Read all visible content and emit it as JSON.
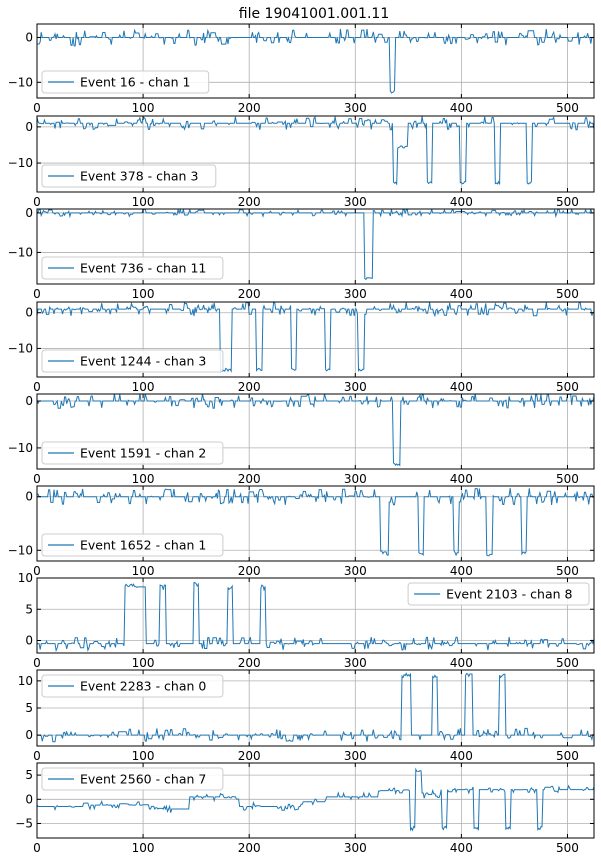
{
  "title": "file  19041001.001.11",
  "colors": {
    "line": "#1f77b4",
    "grid": "#b0b0b0",
    "axis": "#000000",
    "legend_border": "#cccccc"
  },
  "chart_data": [
    {
      "type": "line",
      "legend": "Event 16 - chan 1",
      "legend_loc": "lower-left",
      "xlim": [
        0,
        525
      ],
      "ylim": [
        -13.5,
        3
      ],
      "xticks": [
        0,
        100,
        200,
        300,
        400,
        500
      ],
      "yticks": [
        -10,
        0
      ],
      "grid": true,
      "baseline": 0,
      "noise": 1.2,
      "seed": 11,
      "pulses": [
        {
          "start": 333,
          "end": 337,
          "level": -12
        }
      ]
    },
    {
      "type": "line",
      "legend": "Event 378 - chan 3",
      "legend_loc": "lower-left",
      "xlim": [
        0,
        525
      ],
      "ylim": [
        -18,
        3
      ],
      "xticks": [
        0,
        100,
        200,
        300,
        400,
        500
      ],
      "yticks": [
        -10,
        0
      ],
      "grid": true,
      "baseline": 1,
      "noise": 1.2,
      "seed": 23,
      "pulses": [
        {
          "start": 336,
          "end": 339,
          "level": -15.5
        },
        {
          "start": 340,
          "end": 348,
          "level": -5.5
        },
        {
          "start": 368,
          "end": 372,
          "level": -15.5
        },
        {
          "start": 399,
          "end": 403,
          "level": -15.5
        },
        {
          "start": 432,
          "end": 436,
          "level": -15.5
        },
        {
          "start": 462,
          "end": 466,
          "level": -15.5
        }
      ]
    },
    {
      "type": "line",
      "legend": "Event 736 - chan 11",
      "legend_loc": "lower-left",
      "xlim": [
        0,
        525
      ],
      "ylim": [
        -18,
        1
      ],
      "xticks": [
        0,
        100,
        200,
        300,
        400,
        500
      ],
      "yticks": [
        -10,
        0
      ],
      "grid": true,
      "baseline": 0,
      "noise": 0.6,
      "seed": 37,
      "pulses": [
        {
          "start": 309,
          "end": 316,
          "level": -16.5
        }
      ]
    },
    {
      "type": "line",
      "legend": "Event 1244 - chan 3",
      "legend_loc": "lower-left",
      "xlim": [
        0,
        525
      ],
      "ylim": [
        -18,
        3
      ],
      "xticks": [
        0,
        100,
        200,
        300,
        400,
        500
      ],
      "yticks": [
        -10,
        0
      ],
      "grid": true,
      "baseline": 1,
      "noise": 1.2,
      "seed": 41,
      "pulses": [
        {
          "start": 173,
          "end": 183,
          "level": -16
        },
        {
          "start": 207,
          "end": 211,
          "level": -16
        },
        {
          "start": 240,
          "end": 244,
          "level": -16
        },
        {
          "start": 272,
          "end": 276,
          "level": -16
        },
        {
          "start": 303,
          "end": 307,
          "level": -16
        }
      ]
    },
    {
      "type": "line",
      "legend": "Event 1591 - chan 2",
      "legend_loc": "lower-left",
      "xlim": [
        0,
        525
      ],
      "ylim": [
        -14.5,
        1.5
      ],
      "xticks": [
        0,
        100,
        200,
        300,
        400,
        500
      ],
      "yticks": [
        -10,
        0
      ],
      "grid": true,
      "baseline": 0,
      "noise": 1.0,
      "seed": 53,
      "pulses": [
        {
          "start": 336,
          "end": 342,
          "level": -13.5
        }
      ]
    },
    {
      "type": "line",
      "legend": "Event 1652 - chan 1",
      "legend_loc": "lower-left",
      "xlim": [
        0,
        525
      ],
      "ylim": [
        -12,
        2
      ],
      "xticks": [
        0,
        100,
        200,
        300,
        400,
        500
      ],
      "yticks": [
        -10,
        0
      ],
      "grid": true,
      "baseline": 0,
      "noise": 1.0,
      "seed": 67,
      "pulses": [
        {
          "start": 324,
          "end": 330,
          "level": -10.5
        },
        {
          "start": 360,
          "end": 364,
          "level": -10.5
        },
        {
          "start": 393,
          "end": 397,
          "level": -10.5
        },
        {
          "start": 424,
          "end": 428,
          "level": -11
        },
        {
          "start": 457,
          "end": 461,
          "level": -10.5
        }
      ]
    },
    {
      "type": "line",
      "legend": "Event 2103 - chan 8",
      "legend_loc": "upper-right",
      "xlim": [
        0,
        525
      ],
      "ylim": [
        -2,
        10
      ],
      "xticks": [
        0,
        100,
        200,
        300,
        400,
        500
      ],
      "yticks": [
        0,
        5,
        10
      ],
      "grid": true,
      "baseline": -0.5,
      "noise": 0.7,
      "seed": 71,
      "pulses": [
        {
          "start": 83,
          "end": 95,
          "level": 8.8
        },
        {
          "start": 116,
          "end": 120,
          "level": 8.5
        },
        {
          "start": 148,
          "end": 152,
          "level": 9
        },
        {
          "start": 180,
          "end": 184,
          "level": 8.5
        },
        {
          "start": 211,
          "end": 215,
          "level": 8.5
        }
      ]
    },
    {
      "type": "line",
      "legend": "Event 2283 - chan 0",
      "legend_loc": "upper-left",
      "xlim": [
        0,
        525
      ],
      "ylim": [
        -2,
        12
      ],
      "xticks": [
        0,
        100,
        200,
        300,
        400,
        500
      ],
      "yticks": [
        0,
        5,
        10
      ],
      "grid": true,
      "baseline": 0,
      "noise": 0.8,
      "seed": 83,
      "pulses": [
        {
          "start": 344,
          "end": 352,
          "level": 11
        },
        {
          "start": 373,
          "end": 377,
          "level": 11
        },
        {
          "start": 404,
          "end": 408,
          "level": 11
        },
        {
          "start": 436,
          "end": 440,
          "level": 11
        }
      ]
    },
    {
      "type": "line",
      "legend": "Event 2560 - chan 7",
      "legend_loc": "upper-left",
      "xlim": [
        0,
        525
      ],
      "ylim": [
        -8,
        7.5
      ],
      "xticks": [
        0,
        100,
        200,
        300,
        400,
        500
      ],
      "yticks": [
        -5,
        0,
        5
      ],
      "grid": true,
      "noise": 0.5,
      "seed": 97,
      "drift": [
        [
          0,
          -1.5
        ],
        [
          50,
          -1.2
        ],
        [
          100,
          -2
        ],
        [
          140,
          0.5
        ],
        [
          190,
          -1.5
        ],
        [
          250,
          -0.5
        ],
        [
          270,
          0.5
        ],
        [
          320,
          1.8
        ],
        [
          355,
          1
        ],
        [
          380,
          2
        ],
        [
          525,
          2
        ]
      ],
      "pulses": [
        {
          "start": 352,
          "end": 356,
          "level": -6
        },
        {
          "start": 357,
          "end": 362,
          "level": 6
        },
        {
          "start": 382,
          "end": 386,
          "level": -6
        },
        {
          "start": 412,
          "end": 416,
          "level": -6
        },
        {
          "start": 442,
          "end": 446,
          "level": -6
        },
        {
          "start": 472,
          "end": 476,
          "level": -6
        }
      ]
    }
  ]
}
